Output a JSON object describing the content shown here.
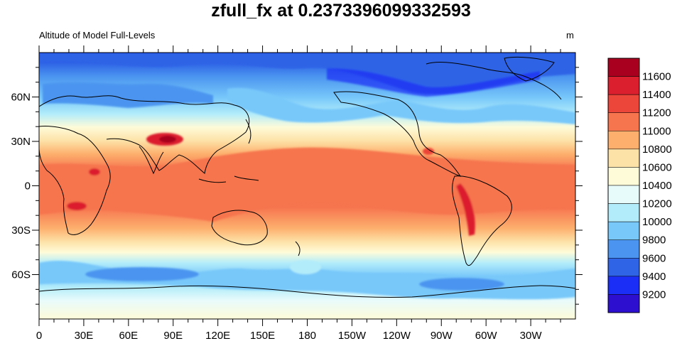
{
  "figure": {
    "title": "zfull_fx at 0.2373396099332593",
    "left_subtitle": "Altitude of Model Full-Levels",
    "right_subtitle": "m"
  },
  "map": {
    "projection": "cylindrical-equidistant",
    "center_longitude": 180,
    "lon_range": [
      0,
      360
    ],
    "lat_range": [
      -90,
      90
    ],
    "x_tick_labels": [
      "0",
      "30E",
      "60E",
      "90E",
      "120E",
      "150E",
      "180",
      "150W",
      "120W",
      "90W",
      "60W",
      "30W"
    ],
    "y_tick_labels": [
      "60N",
      "30N",
      "0",
      "30S",
      "60S"
    ],
    "coastlines": true,
    "fill": "filled-contours"
  },
  "colorbar": {
    "orientation": "vertical",
    "position": "right",
    "levels": [
      9200,
      9400,
      9600,
      9800,
      10000,
      10200,
      10400,
      10600,
      10800,
      11000,
      11200,
      11400,
      11600
    ],
    "labels": [
      "11600",
      "11400",
      "11200",
      "11000",
      "10800",
      "10600",
      "10400",
      "10200",
      "10000",
      "9800",
      "9600",
      "9400",
      "9200"
    ],
    "colors_low_to_high": [
      "#2d0fd0",
      "#1a2ef5",
      "#2f64e6",
      "#4b95f0",
      "#78c8fa",
      "#b2ecfa",
      "#e8fbfb",
      "#fefbd9",
      "#fde2a8",
      "#fdb06e",
      "#f6744e",
      "#ec4539",
      "#dc1f2e",
      "#a8001e"
    ]
  },
  "chart_data": {
    "type": "heatmap",
    "variable": "zfull_fx",
    "units": "m",
    "description": "Zonal field of model full-level altitude; higher (~11000-11400 m) in tropics, lower (~9200-9800 m) near poles",
    "value_range": [
      9200,
      11600
    ]
  }
}
